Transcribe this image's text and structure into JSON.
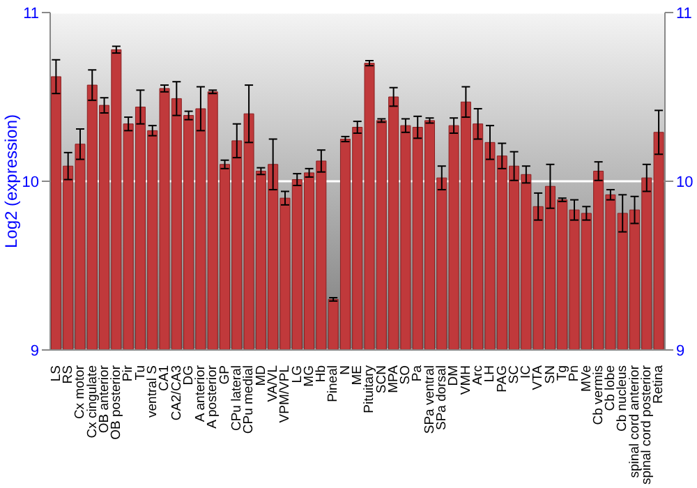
{
  "chart_data": {
    "type": "bar",
    "ylabel": "Log2 (expression)",
    "categories": [
      "LS",
      "RS",
      "Cx motor",
      "Cx cingulate",
      "OB anterior",
      "OB posterior",
      "Pir",
      "Tu",
      "ventral S",
      "CA1",
      "CA2/CA3",
      "DG",
      "A anterior",
      "A posterior",
      "GP",
      "CPu lateral",
      "CPu medial",
      "MD",
      "VA/VL",
      "VPM/VPL",
      "LG",
      "MG",
      "Hb",
      "Pineal",
      "N",
      "ME",
      "Pituitary",
      "SCN",
      "MPA",
      "SO",
      "Pa",
      "SPa ventral",
      "SPa dorsal",
      "DM",
      "VMH",
      "Arc",
      "LH",
      "PAG",
      "SC",
      "IC",
      "VTA",
      "SN",
      "Tg",
      "Pn",
      "MVe",
      "Cb vermis",
      "Cb lobe",
      "Cb nucleus",
      "spinal cord anterior",
      "spinal cord posterior",
      "Retina"
    ],
    "values": [
      10.62,
      10.09,
      10.22,
      10.57,
      10.45,
      10.78,
      10.34,
      10.44,
      10.3,
      10.55,
      10.49,
      10.39,
      10.43,
      10.53,
      10.1,
      10.24,
      10.4,
      10.06,
      10.1,
      9.9,
      10.01,
      10.05,
      10.12,
      9.3,
      10.25,
      10.32,
      10.7,
      10.36,
      10.5,
      10.33,
      10.32,
      10.36,
      10.02,
      10.33,
      10.47,
      10.34,
      10.23,
      10.15,
      10.09,
      10.04,
      9.85,
      9.97,
      9.89,
      9.83,
      9.81,
      10.06,
      9.92,
      9.81,
      9.83,
      10.02,
      10.29
    ],
    "errors": [
      0.1,
      0.08,
      0.09,
      0.09,
      0.045,
      0.02,
      0.04,
      0.1,
      0.03,
      0.02,
      0.1,
      0.025,
      0.13,
      0.01,
      0.025,
      0.1,
      0.17,
      0.02,
      0.15,
      0.04,
      0.035,
      0.025,
      0.065,
      0.01,
      0.015,
      0.035,
      0.015,
      0.01,
      0.055,
      0.04,
      0.065,
      0.015,
      0.07,
      0.045,
      0.09,
      0.09,
      0.1,
      0.075,
      0.085,
      0.05,
      0.08,
      0.13,
      0.01,
      0.06,
      0.04,
      0.055,
      0.03,
      0.11,
      0.08,
      0.08,
      0.13
    ],
    "color": "#c0393b",
    "ylim": [
      9,
      11
    ],
    "yticks": [
      9,
      10,
      11
    ],
    "y2lim": [
      9,
      11
    ],
    "y2ticks": [
      9,
      10,
      11
    ],
    "grid": "y"
  }
}
